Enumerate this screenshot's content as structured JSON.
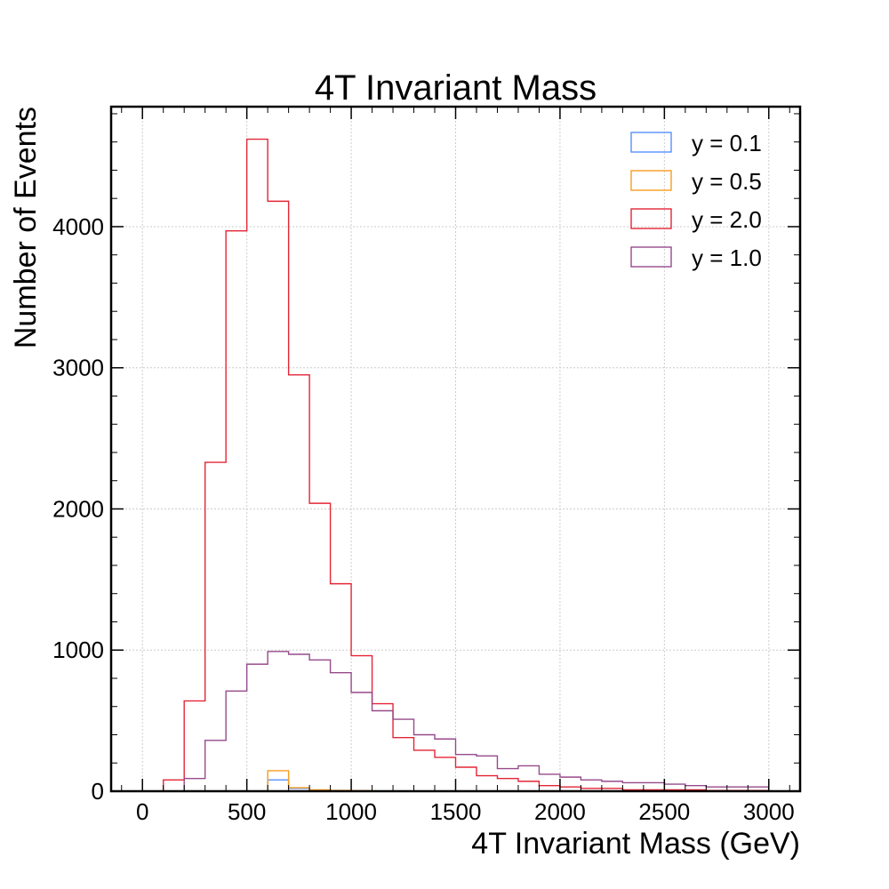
{
  "chart_data": {
    "type": "histogram",
    "title": "4T Invariant Mass",
    "xlabel": "4T Invariant Mass (GeV)",
    "ylabel": "Number of Events",
    "xlim": [
      -150,
      3150
    ],
    "ylim": [
      0,
      4850
    ],
    "bin_edges": [
      0,
      100,
      200,
      300,
      400,
      500,
      600,
      700,
      800,
      900,
      1000,
      1100,
      1200,
      1300,
      1400,
      1500,
      1600,
      1700,
      1800,
      1900,
      2000,
      2100,
      2200,
      2300,
      2400,
      2500,
      2600,
      2700,
      2800,
      2900,
      3000
    ],
    "x_ticks": [
      0,
      500,
      1000,
      1500,
      2000,
      2500,
      3000
    ],
    "y_ticks": [
      0,
      1000,
      2000,
      3000,
      4000
    ],
    "grid": true,
    "legend_position": "top-right",
    "series": [
      {
        "name": "y = 0.1",
        "color": "#5790fc",
        "values": [
          0,
          0,
          0,
          0,
          0,
          0,
          80,
          20,
          8,
          5,
          3,
          2,
          1,
          1,
          0,
          0,
          0,
          0,
          0,
          0,
          0,
          0,
          0,
          0,
          0,
          0,
          0,
          0,
          0,
          0
        ]
      },
      {
        "name": "y = 0.5",
        "color": "#f89c20",
        "values": [
          0,
          0,
          0,
          0,
          0,
          0,
          145,
          25,
          10,
          6,
          4,
          2,
          1,
          1,
          0,
          0,
          0,
          0,
          0,
          0,
          0,
          0,
          0,
          0,
          0,
          0,
          0,
          0,
          0,
          0
        ]
      },
      {
        "name": "y = 2.0",
        "color": "#e42536",
        "values": [
          0,
          80,
          640,
          2330,
          3970,
          4620,
          4180,
          2950,
          2040,
          1470,
          960,
          620,
          380,
          290,
          240,
          170,
          110,
          90,
          70,
          40,
          30,
          20,
          20,
          10,
          10,
          10,
          10,
          5,
          5,
          5
        ]
      },
      {
        "name": "y = 1.0",
        "color": "#964a8b",
        "values": [
          0,
          0,
          90,
          360,
          710,
          900,
          990,
          970,
          930,
          840,
          700,
          570,
          510,
          400,
          370,
          260,
          250,
          160,
          180,
          120,
          100,
          80,
          70,
          60,
          60,
          50,
          40,
          30,
          30,
          30
        ]
      }
    ]
  }
}
